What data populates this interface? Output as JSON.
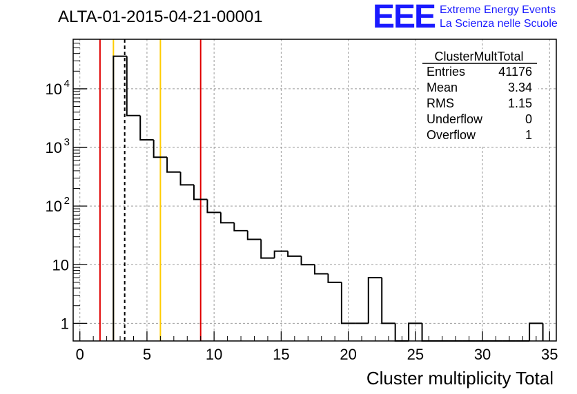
{
  "chart_data": {
    "type": "histogram",
    "title": "ALTA-01-2015-04-21-00001",
    "xlabel": "Cluster multiplicity Total",
    "ylabel": "",
    "xlim": [
      -0.5,
      35.5
    ],
    "ylim": [
      0.5,
      70000
    ],
    "yscale": "log",
    "grid": true,
    "x_ticks": [
      "0",
      "5",
      "10",
      "15",
      "20",
      "25",
      "30",
      "35"
    ],
    "y_ticks": [
      "1",
      "10",
      "10",
      "10",
      "10"
    ],
    "y_tick_exponents": [
      "",
      "",
      "2",
      "3",
      "4"
    ],
    "bins": {
      "edges_start": 2.5,
      "bin_width": 1,
      "values": [
        36000,
        3500,
        1350,
        680,
        380,
        230,
        130,
        78,
        52,
        38,
        27,
        13,
        17,
        14,
        10,
        7,
        5,
        1,
        1,
        6,
        1,
        0,
        1,
        0,
        0,
        0,
        0,
        0,
        0,
        0,
        0,
        1
      ]
    },
    "vertical_lines": [
      {
        "x": 1.5,
        "color": "#e00000",
        "style": "solid"
      },
      {
        "x": 2.5,
        "color": "#ffcc00",
        "style": "solid"
      },
      {
        "x": 3.34,
        "color": "#000000",
        "style": "dashed"
      },
      {
        "x": 6.0,
        "color": "#ffcc00",
        "style": "solid"
      },
      {
        "x": 9.0,
        "color": "#e00000",
        "style": "solid"
      }
    ],
    "stats_box": {
      "name": "ClusterMultTotal",
      "rows": [
        {
          "label": "Entries",
          "value": "41176"
        },
        {
          "label": "Mean",
          "value": "3.34"
        },
        {
          "label": "RMS",
          "value": "1.15"
        },
        {
          "label": "Underflow",
          "value": "0"
        },
        {
          "label": "Overflow",
          "value": "1"
        }
      ]
    }
  },
  "logo": {
    "letters": "EEE",
    "line1": "Extreme Energy Events",
    "line2": "La Scienza nelle Scuole"
  }
}
